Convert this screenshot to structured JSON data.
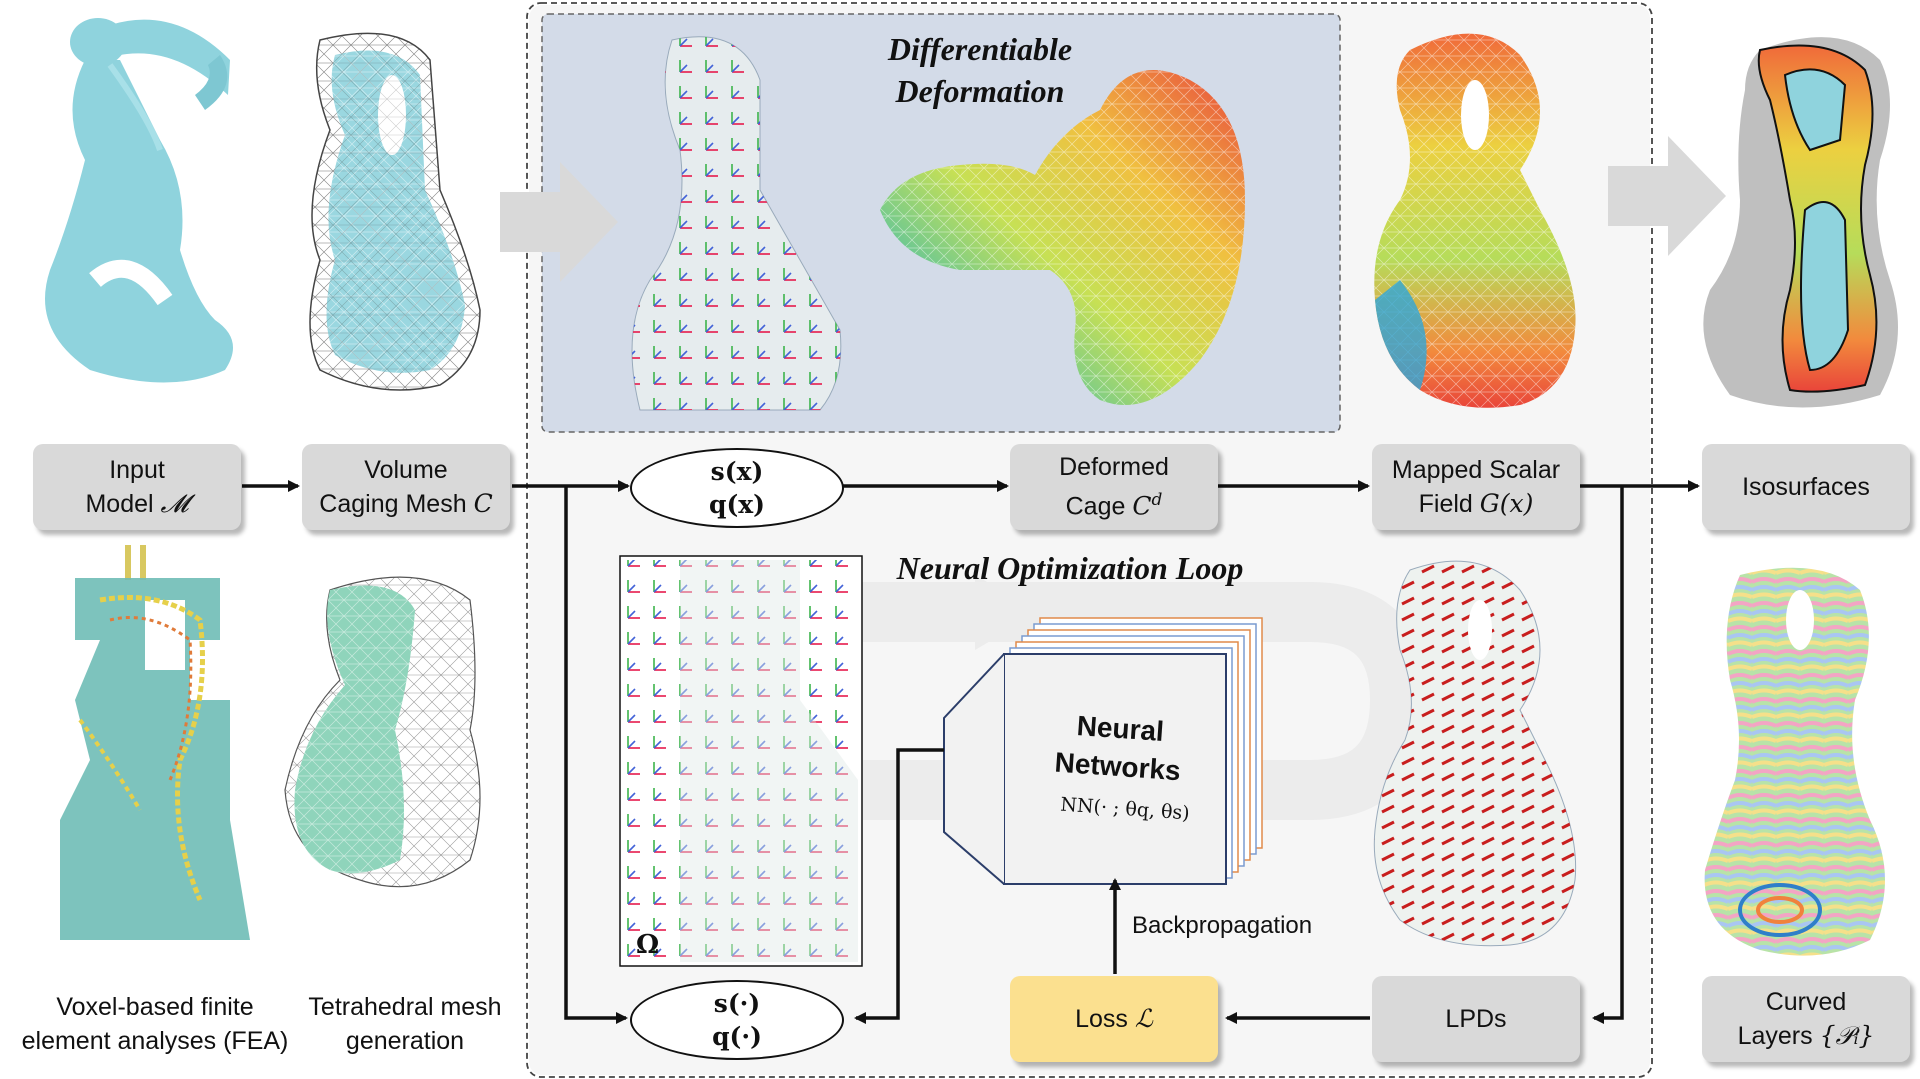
{
  "frame": {
    "differentiable_deformation": "Differentiable\nDeformation",
    "neural_loop_title": "Neural Optimization Loop"
  },
  "boxes": {
    "input_model": {
      "line1": "Input",
      "line2": "Model",
      "sym": "𝓜"
    },
    "volume_cage": {
      "line1": "Volume",
      "line2": "Caging Mesh",
      "sym": "C"
    },
    "deformed_cage": {
      "line1": "Deformed",
      "line2": "Cage",
      "sym": "C",
      "sup": "d"
    },
    "mapped_field": {
      "line1": "Mapped Scalar",
      "line2": "Field",
      "sym": "G(x)"
    },
    "isosurfaces": {
      "label": "Isosurfaces"
    },
    "curved_layers": {
      "line1": "Curved",
      "line2": "Layers",
      "sym": "{𝒫ᵢ}"
    },
    "lpds": {
      "label": "LPDs"
    },
    "loss": {
      "label": "Loss",
      "sym": "ℒ"
    }
  },
  "ellipses": {
    "sq_x": {
      "s": "s(x)",
      "q": "q(x)"
    },
    "sq_dot": {
      "s": "s(·)",
      "q": "q(·)"
    }
  },
  "network": {
    "title_line1": "Neural",
    "title_line2": "Networks",
    "formula": "NN(· ; θq, θs)"
  },
  "labels": {
    "omega": "Ω",
    "backprop": "Backpropagation"
  },
  "captions": {
    "fea": "Voxel-based finite\nelement analyses (FEA)",
    "tet": "Tetrahedral mesh\ngeneration"
  },
  "colors": {
    "box_gray": "#d9d9d9",
    "loss_yellow": "#fbe08f",
    "panel_blue": "#d3dbe8",
    "model_cyan": "#8fd3dd",
    "mesh_green": "#8fd4bb"
  }
}
